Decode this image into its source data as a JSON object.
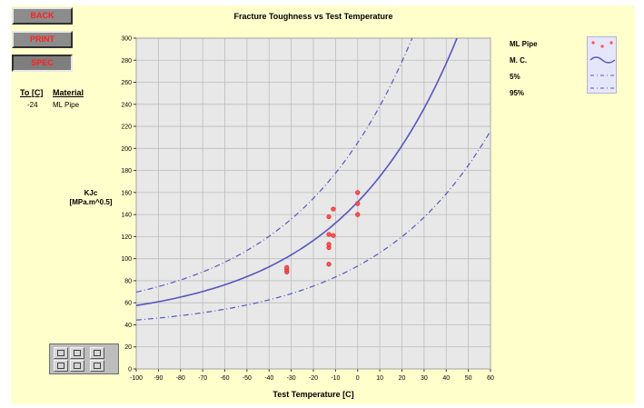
{
  "buttons": [
    {
      "name": "back-button",
      "label": "BACK",
      "pressed": false
    },
    {
      "name": "print-button",
      "label": "PRINT",
      "pressed": false
    },
    {
      "name": "spec-button",
      "label": "SPEC",
      "pressed": true
    }
  ],
  "info_table": {
    "headers": [
      "To [C]",
      "Material"
    ],
    "rows": [
      [
        "-24",
        "ML Pipe"
      ]
    ]
  },
  "toolbar": {
    "icons": [
      "zoom-in-icon",
      "zoom-out-icon",
      "grid-icon",
      "pan-icon",
      "axes-icon",
      "home-icon"
    ]
  },
  "colors": {
    "panel": "#ffffcc",
    "plot_bg": "#e8e8e8",
    "grid": "#bcbcbc",
    "curve": "#5555c0",
    "points": "#ff5050",
    "legend_bg": "#e6e6fa"
  },
  "chart_data": {
    "type": "line",
    "title": "Fracture Toughness vs Test Temperature",
    "xlabel": "Test Temperature [C]",
    "ylabel": "KJc\n[MPa.m^0.5]",
    "xlim": [
      -100,
      60
    ],
    "ylim": [
      0,
      300
    ],
    "xticks": [
      -100,
      -90,
      -80,
      -70,
      -60,
      -50,
      -40,
      -30,
      -20,
      -10,
      0,
      10,
      20,
      30,
      40,
      50,
      60
    ],
    "yticks": [
      0,
      20,
      40,
      60,
      80,
      100,
      120,
      140,
      160,
      180,
      200,
      220,
      240,
      260,
      280,
      300
    ],
    "grid": true,
    "legend_position": "top-right",
    "master_curve": {
      "T0": -24,
      "K_base": 30,
      "K_coef": 70,
      "rate": 0.019
    },
    "series": [
      {
        "name": "ML Pipe",
        "style": "points",
        "x": [
          -32,
          -32,
          -32,
          -13,
          -13,
          -13,
          -13,
          -13,
          -11,
          -11,
          0,
          0,
          0
        ],
        "y": [
          88,
          90,
          92,
          95,
          110,
          113,
          122,
          138,
          121,
          145,
          140,
          150,
          160
        ]
      },
      {
        "name": "M. C.",
        "style": "solid",
        "fraction": 0.5
      },
      {
        "name": "5%",
        "style": "dashed",
        "fraction": 0.05
      },
      {
        "name": "95%",
        "style": "dashed",
        "fraction": 0.95
      }
    ]
  }
}
